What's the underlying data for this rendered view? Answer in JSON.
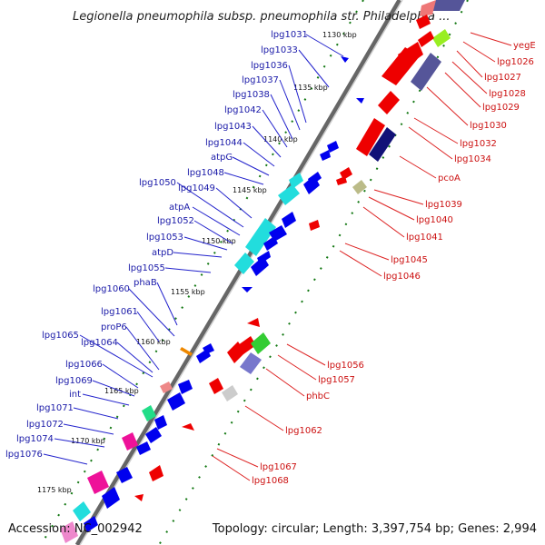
{
  "title": "Legionella pneumophila subsp. pneumophila str. Philadelphia ...",
  "footer": {
    "accession": "Accession: NC_002942",
    "topology": "Topology: circular; Length: 3,397,754 bp; Genes: 2,994"
  },
  "colors": {
    "left_label": "#1a1aa8",
    "right_label": "#cc1111",
    "forward_gene": "#0000ee",
    "reverse_gene": "#ee0000",
    "cyan_gene": "#22dddd",
    "magenta_gene": "#ee1199",
    "purple_gene": "#555599",
    "tick": "#117711"
  },
  "kbp_marks": [
    "1130 kbp",
    "1135 kbp",
    "1140 kbp",
    "1145 kbp",
    "1150 kbp",
    "1155 kbp",
    "1160 kbp",
    "1165 kbp",
    "1170 kbp",
    "1175 kbp"
  ],
  "left_labels": [
    "lpg1031",
    "lpg1033",
    "lpg1036",
    "lpg1037",
    "lpg1038",
    "lpg1042",
    "lpg1043",
    "lpg1044",
    "atpG",
    "lpg1048",
    "lpg1050",
    "lpg1049",
    "atpA",
    "lpg1052",
    "lpg1053",
    "atpD",
    "lpg1055",
    "phaB",
    "lpg1060",
    "lpg1061",
    "proP6",
    "lpg1065",
    "lpg1064",
    "lpg1066",
    "lpg1069",
    "int",
    "lpg1071",
    "lpg1072",
    "lpg1074",
    "lpg1076"
  ],
  "right_labels": [
    "yegE",
    "lpg1026",
    "lpg1027",
    "lpg1028",
    "lpg1029",
    "lpg1030",
    "lpg1032",
    "lpg1034",
    "pcoA",
    "lpg1039",
    "lpg1040",
    "lpg1041",
    "lpg1045",
    "lpg1046",
    "lpg1056",
    "lpg1057",
    "phbC",
    "lpg1062",
    "lpg1067",
    "lpg1068"
  ]
}
